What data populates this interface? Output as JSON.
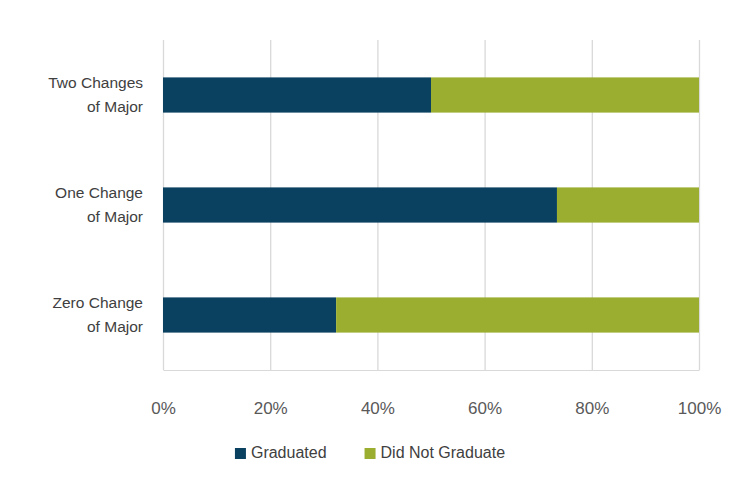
{
  "chart_data": {
    "type": "bar",
    "orientation": "horizontal",
    "stacked": true,
    "categories": [
      "Two Changes of Major",
      "One Change of Major",
      "Zero Change of Major"
    ],
    "series": [
      {
        "name": "Graduated",
        "color": "#0b4160",
        "values": [
          50,
          73.5,
          32.3
        ]
      },
      {
        "name": "Did Not Graduate",
        "color": "#9bae2f",
        "values": [
          50,
          26.5,
          67.7
        ]
      }
    ],
    "xlim": [
      0,
      100
    ],
    "xticks": [
      {
        "value": 0,
        "label": "0%"
      },
      {
        "value": 20,
        "label": "20%"
      },
      {
        "value": 40,
        "label": "40%"
      },
      {
        "value": 60,
        "label": "60%"
      },
      {
        "value": 80,
        "label": "80%"
      },
      {
        "value": 100,
        "label": "100%"
      }
    ],
    "grid": true,
    "legend": "bottom"
  }
}
